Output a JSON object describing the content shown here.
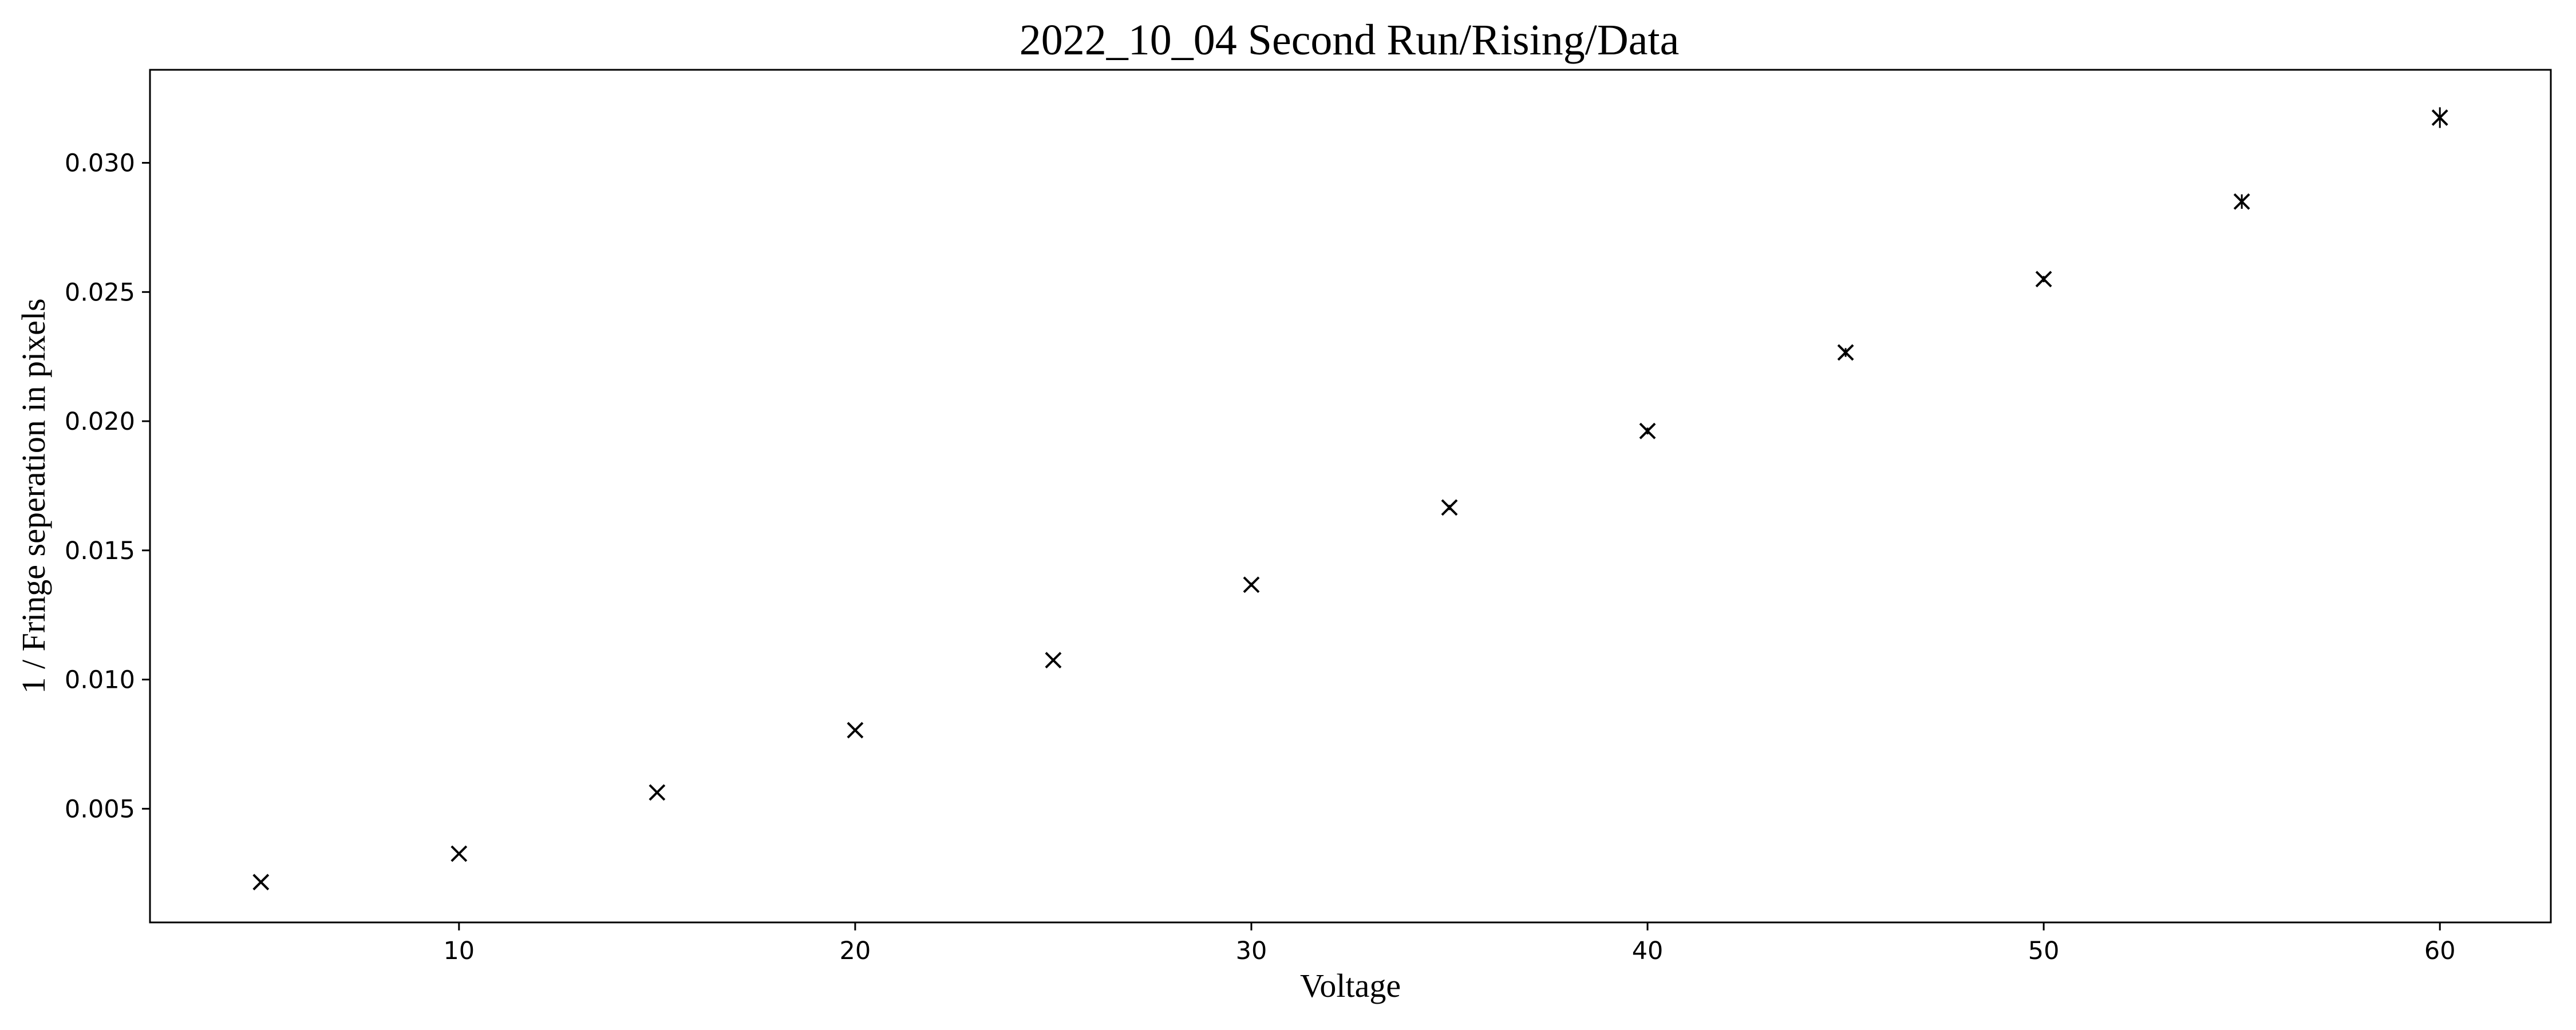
{
  "chart_data": {
    "type": "scatter",
    "title": "2022_10_04 Second Run/Rising/Data",
    "xlabel": "Voltage",
    "ylabel": "1 / Fringe seperation in pixels",
    "xlim": [
      2.2,
      62.8
    ],
    "ylim": [
      0.0006,
      0.0336
    ],
    "xticks": [
      10,
      20,
      30,
      40,
      50,
      60
    ],
    "xtick_labels": [
      "10",
      "20",
      "30",
      "40",
      "50",
      "60"
    ],
    "yticks": [
      0.005,
      0.01,
      0.015,
      0.02,
      0.025,
      0.03
    ],
    "ytick_labels": [
      "0.005",
      "0.010",
      "0.015",
      "0.020",
      "0.025",
      "0.030"
    ],
    "grid": false,
    "legend": false,
    "marker": "x",
    "marker_color": "#000000",
    "series": [
      {
        "x": [
          5,
          10,
          15,
          20,
          25,
          30,
          35,
          40,
          45,
          50,
          55,
          60
        ],
        "y": [
          0.00216,
          0.00326,
          0.00563,
          0.00804,
          0.01075,
          0.01367,
          0.01666,
          0.01962,
          0.02266,
          0.0255,
          0.0285,
          0.03175
        ],
        "yerr": [
          3e-05,
          4e-05,
          5e-05,
          6e-05,
          7e-05,
          8e-05,
          0.0001,
          0.00013,
          0.00017,
          0.00012,
          0.00028,
          0.0004
        ]
      }
    ]
  }
}
